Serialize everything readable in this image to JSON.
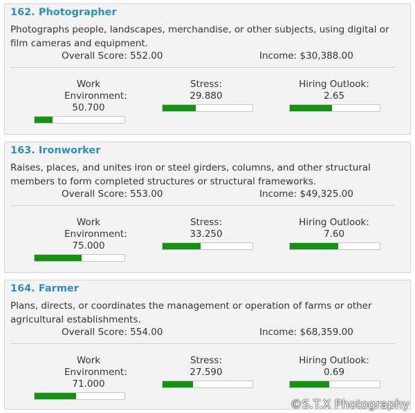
{
  "jobs": [
    {
      "title": "162. Photographer",
      "description": "Photographs people, landscapes, merchandise, or other subjects, using digital or film cameras and equipment.",
      "overall_score": "Overall Score: 552.00",
      "income": "Income: $30,388.00",
      "work_label": "Work Environment:",
      "work_value": "50.700",
      "work_level": 0.2,
      "stress_label": "Stress:",
      "stress_value": "29.880",
      "stress_level": 0.37,
      "outlook_label": "Hiring Outlook:",
      "outlook_value": "2.65",
      "outlook_level": 0.47
    },
    {
      "title": "163. Ironworker",
      "description": "Raises, places, and unites iron or steel girders, columns, and other structural members to form completed structures or structural frameworks.",
      "overall_score": "Overall Score: 553.00",
      "income": "Income: $49,325.00",
      "work_label": "Work Environment:",
      "work_value": "75.000",
      "work_level": 0.52,
      "stress_label": "Stress:",
      "stress_value": "33.250",
      "stress_level": 0.42,
      "outlook_label": "Hiring Outlook:",
      "outlook_value": "7.60",
      "outlook_level": 0.54
    },
    {
      "title": "164. Farmer",
      "description": "Plans, directs, or coordinates the management or operation of farms or other agricultural establishments.",
      "overall_score": "Overall Score: 554.00",
      "income": "Income: $68,359.00",
      "work_label": "Work Environment:",
      "work_value": "71.000",
      "work_level": 0.46,
      "stress_label": "Stress:",
      "stress_value": "27.590",
      "stress_level": 0.34,
      "outlook_label": "Hiring Outlook:",
      "outlook_value": "0.69",
      "outlook_level": 0.44
    }
  ],
  "watermark": "©S.T.X Photography",
  "colors": {
    "title": "#2f8fb8",
    "bar_fill": "#13930f",
    "card_bg": "#f3f3f3"
  }
}
